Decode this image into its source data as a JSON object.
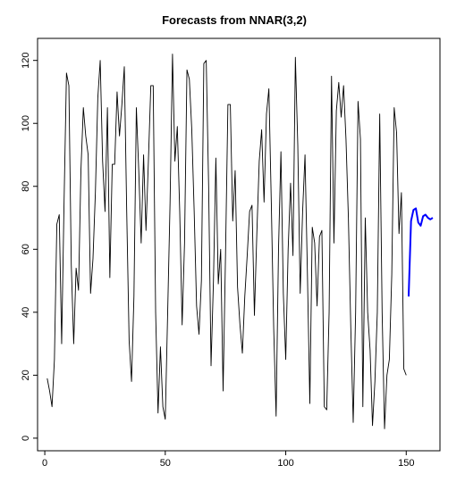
{
  "chart_data": {
    "type": "line",
    "title": "Forecasts from NNAR(3,2)",
    "xlabel": "",
    "ylabel": "",
    "xlim": [
      -3,
      164
    ],
    "ylim": [
      -4,
      127
    ],
    "x_ticks": [
      0,
      50,
      100,
      150
    ],
    "y_ticks": [
      0,
      20,
      40,
      60,
      80,
      100,
      120
    ],
    "grid": false,
    "legend": "none",
    "series": [
      {
        "color": "#000000",
        "x_start": 1,
        "values": [
          19,
          15,
          10,
          25,
          68,
          71,
          30,
          75,
          116,
          112,
          55,
          30,
          54,
          47,
          85,
          105,
          96,
          90,
          46,
          57,
          78,
          108,
          120,
          88,
          72,
          105,
          51,
          87,
          87,
          110,
          96,
          106,
          118,
          72,
          31,
          18,
          45,
          105,
          85,
          62,
          90,
          66,
          88,
          112,
          112,
          40,
          8,
          29,
          10,
          6,
          40,
          75,
          122,
          88,
          99,
          72,
          36,
          62,
          117,
          114,
          98,
          72,
          42,
          33,
          50,
          119,
          120,
          80,
          23,
          50,
          89,
          49,
          60,
          15,
          58,
          106,
          106,
          69,
          85,
          48,
          36,
          27,
          45,
          58,
          72,
          74,
          39,
          65,
          88,
          98,
          75,
          103,
          111,
          75,
          35,
          7,
          60,
          91,
          46,
          25,
          60,
          81,
          58,
          121,
          93,
          46,
          72,
          90,
          52,
          11,
          67,
          62,
          42,
          64,
          66,
          10,
          9,
          40,
          115,
          62,
          104,
          113,
          102,
          112,
          95,
          70,
          35,
          5,
          40,
          107,
          95,
          10,
          70,
          40,
          28,
          4,
          18,
          40,
          103,
          40,
          3,
          20,
          25,
          52,
          105,
          97,
          65,
          78,
          22,
          20
        ]
      },
      {
        "color": "#0000ff",
        "x_start": 151,
        "values": [
          45,
          69,
          72.5,
          73,
          68.5,
          67.5,
          70.5,
          71,
          70,
          69.5,
          70
        ]
      }
    ]
  }
}
